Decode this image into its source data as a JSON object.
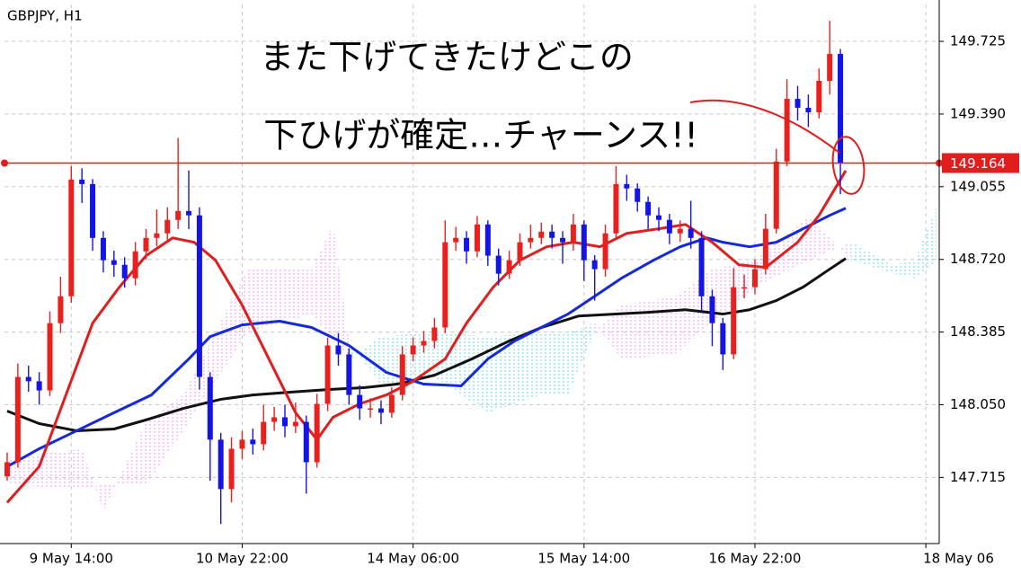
{
  "chart_data": {
    "type": "candlestick",
    "title": "GBPJPY, H1",
    "annotations": [
      "また下げてきたけどこの",
      "下ひげが確定…チャーンス!!"
    ],
    "up_color": "#e8201e",
    "down_color": "#1414e6",
    "x": [
      0,
      2,
      4,
      6,
      8,
      10,
      12,
      14,
      16,
      18,
      20,
      22,
      24,
      26,
      28,
      30,
      32,
      34,
      36,
      38,
      40,
      42,
      44,
      46,
      48,
      50,
      52,
      54,
      56,
      58,
      60,
      62,
      64,
      66,
      68,
      70,
      72,
      74,
      76,
      78,
      80,
      82,
      84,
      86,
      88,
      90,
      92,
      94,
      96,
      98,
      100,
      102,
      104,
      106,
      108,
      110,
      112,
      114,
      116,
      118,
      120,
      122,
      124,
      126,
      128,
      130,
      132,
      134,
      136,
      138,
      140,
      142,
      144,
      146,
      148,
      150,
      152,
      154,
      156
    ],
    "open": [
      147.72,
      147.785,
      148.178,
      148.158,
      148.116,
      148.426,
      148.55,
      149.088,
      149.067,
      148.819,
      148.716,
      148.695,
      148.633,
      148.757,
      148.819,
      148.84,
      148.902,
      148.943,
      148.923,
      148.178,
      147.889,
      147.661,
      147.847,
      147.889,
      147.868,
      147.971,
      147.992,
      147.951,
      147.971,
      147.785,
      148.054,
      148.323,
      148.282,
      148.095,
      148.033,
      148.033,
      148.013,
      148.095,
      148.282,
      148.323,
      148.344,
      148.406,
      148.799,
      148.819,
      148.757,
      148.881,
      148.737,
      148.654,
      148.716,
      148.799,
      148.819,
      148.848,
      148.819,
      148.799,
      148.881,
      148.716,
      148.675,
      148.84,
      149.067,
      149.047,
      148.985,
      148.923,
      148.902,
      148.84,
      148.861,
      148.819,
      148.55,
      148.426,
      148.282,
      148.592,
      148.592,
      148.675,
      148.861,
      149.171,
      149.46,
      149.419,
      149.398,
      149.543,
      149.667
    ],
    "high": [
      147.83,
      148.24,
      148.23,
      148.2,
      148.48,
      148.64,
      149.15,
      149.14,
      149.09,
      148.85,
      148.76,
      148.73,
      148.8,
      148.86,
      148.95,
      148.96,
      149.28,
      149.13,
      148.96,
      148.2,
      147.92,
      147.9,
      147.93,
      147.94,
      148.05,
      148.04,
      148.05,
      148.06,
      148.0,
      148.1,
      148.36,
      148.38,
      148.31,
      148.14,
      148.08,
      148.07,
      148.13,
      148.32,
      148.36,
      148.39,
      148.45,
      148.9,
      148.87,
      148.85,
      148.92,
      148.9,
      148.77,
      148.76,
      148.84,
      148.88,
      148.89,
      148.88,
      148.85,
      148.93,
      148.9,
      148.74,
      148.88,
      149.15,
      149.11,
      149.07,
      149.01,
      148.96,
      148.93,
      148.9,
      148.99,
      148.85,
      148.58,
      148.45,
      148.68,
      148.65,
      148.72,
      148.93,
      149.23,
      149.55,
      149.52,
      149.48,
      149.6,
      149.82,
      149.69
    ],
    "low": [
      147.7,
      147.76,
      148.11,
      148.05,
      148.09,
      148.38,
      148.52,
      148.98,
      148.76,
      148.66,
      148.64,
      148.59,
      148.6,
      148.72,
      148.78,
      148.8,
      148.86,
      148.86,
      148.12,
      147.7,
      147.5,
      147.6,
      147.8,
      147.82,
      147.84,
      147.93,
      147.9,
      147.92,
      147.64,
      147.76,
      148.02,
      148.23,
      148.05,
      147.98,
      147.99,
      147.96,
      147.99,
      148.07,
      148.25,
      148.29,
      148.31,
      148.38,
      148.76,
      148.7,
      148.73,
      148.69,
      148.6,
      148.63,
      148.69,
      148.77,
      148.79,
      148.77,
      148.7,
      148.76,
      148.62,
      148.53,
      148.64,
      148.82,
      148.99,
      148.94,
      148.86,
      148.85,
      148.79,
      148.8,
      148.77,
      148.48,
      148.32,
      148.21,
      148.26,
      148.54,
      148.56,
      148.65,
      148.84,
      149.15,
      149.36,
      149.33,
      149.37,
      149.48,
      149.02
    ],
    "close": [
      147.785,
      148.178,
      148.158,
      148.116,
      148.426,
      148.55,
      149.088,
      149.067,
      148.819,
      148.716,
      148.695,
      148.633,
      148.757,
      148.819,
      148.84,
      148.902,
      148.943,
      148.923,
      148.178,
      147.889,
      147.661,
      147.847,
      147.889,
      147.868,
      147.971,
      147.992,
      147.951,
      147.971,
      147.785,
      148.054,
      148.323,
      148.282,
      148.095,
      148.033,
      148.033,
      148.013,
      148.095,
      148.282,
      148.323,
      148.344,
      148.406,
      148.799,
      148.819,
      148.757,
      148.881,
      148.737,
      148.654,
      148.716,
      148.799,
      148.819,
      148.848,
      148.819,
      148.799,
      148.881,
      148.716,
      148.675,
      148.84,
      149.067,
      149.047,
      148.985,
      148.923,
      148.902,
      148.84,
      148.861,
      148.819,
      148.55,
      148.426,
      148.282,
      148.592,
      148.592,
      148.675,
      148.861,
      149.171,
      149.46,
      149.419,
      149.398,
      149.543,
      149.667,
      149.164
    ],
    "lines": [
      {
        "color": "#111111",
        "x": [
          0,
          6,
          13,
          20,
          26,
          33,
          40,
          46,
          53,
          60,
          67,
          73,
          80,
          87,
          94,
          100,
          107,
          114,
          120,
          127,
          134,
          139,
          144,
          149,
          154,
          157
        ],
        "values": [
          148.021,
          147.963,
          147.93,
          147.938,
          147.98,
          148.033,
          148.075,
          148.095,
          148.108,
          148.12,
          148.129,
          148.145,
          148.186,
          148.261,
          148.344,
          148.406,
          148.459,
          148.468,
          148.476,
          148.488,
          148.468,
          148.488,
          148.53,
          148.592,
          148.675,
          148.724
        ]
      },
      {
        "color": "#1428e0",
        "x": [
          0,
          6,
          13,
          20,
          27,
          34,
          38,
          44,
          51,
          57,
          64,
          71,
          78,
          85,
          90,
          95,
          100,
          105,
          110,
          115,
          121,
          126,
          131,
          134,
          139,
          144,
          149,
          154,
          157
        ],
        "values": [
          147.765,
          147.847,
          147.93,
          148.013,
          148.095,
          148.261,
          148.364,
          148.418,
          148.435,
          148.406,
          148.323,
          148.199,
          148.145,
          148.137,
          148.261,
          148.344,
          148.406,
          148.468,
          148.55,
          148.633,
          148.716,
          148.778,
          148.819,
          148.799,
          148.778,
          148.799,
          148.861,
          148.923,
          148.956
        ]
      },
      {
        "color": "#e01e1e",
        "x": [
          0,
          6,
          11,
          16,
          21,
          26,
          31,
          35,
          39,
          44,
          49,
          54,
          58,
          61,
          66,
          71,
          76,
          82,
          86,
          91,
          96,
          101,
          106,
          111,
          116,
          122,
          127,
          132,
          137,
          142,
          148,
          152,
          157
        ],
        "values": [
          147.599,
          147.765,
          148.095,
          148.426,
          148.592,
          148.737,
          148.819,
          148.799,
          148.716,
          148.509,
          148.261,
          148.013,
          147.889,
          147.992,
          148.054,
          148.095,
          148.158,
          148.261,
          148.426,
          148.592,
          148.716,
          148.778,
          148.799,
          148.778,
          148.84,
          148.861,
          148.881,
          148.799,
          148.695,
          148.683,
          148.799,
          148.923,
          149.129
        ]
      }
    ],
    "cloud": {
      "up_color": "#6fd3e0",
      "down_color": "#f29af0",
      "x": [
        0,
        14,
        18,
        26,
        33,
        45,
        57,
        61,
        64,
        70,
        80,
        90,
        100,
        105,
        110,
        115,
        125,
        132,
        140,
        150,
        158,
        166,
        170,
        174
      ],
      "span_a": [
        147.682,
        147.661,
        147.682,
        147.682,
        147.93,
        148.385,
        148.468,
        148.344,
        148.261,
        148.364,
        148.385,
        148.364,
        148.385,
        148.385,
        148.426,
        148.261,
        148.282,
        148.426,
        148.592,
        148.716,
        148.799,
        148.695,
        148.716,
        148.964
      ],
      "span_b": [
        147.806,
        147.847,
        147.558,
        147.971,
        148.095,
        148.675,
        148.675,
        148.881,
        148.344,
        148.137,
        148.178,
        148.013,
        148.095,
        148.095,
        148.385,
        148.509,
        148.55,
        148.675,
        148.716,
        148.923,
        148.716,
        148.654,
        148.633,
        148.716
      ]
    },
    "current_price": 149.164,
    "price_line_color": "#e01e1e",
    "xlim": [
      -0.5,
      174.5
    ],
    "xticks": [
      {
        "value": 12,
        "label": "9 May 14:00"
      },
      {
        "value": 44,
        "label": "10 May 22:00"
      },
      {
        "value": 76,
        "label": "14 May 06:00"
      },
      {
        "value": 108,
        "label": "15 May 14:00"
      },
      {
        "value": 140,
        "label": "16 May 22:00"
      },
      {
        "value": 172,
        "label": "18 May 06"
      }
    ],
    "ylim": [
      147.41,
      149.895
    ],
    "yticks": [
      149.725,
      {
        "value": 149.39,
        "label": "149.390"
      },
      149.055,
      {
        "value": 148.72,
        "label": "148.720"
      },
      148.385,
      {
        "value": 148.05,
        "label": "148.050"
      },
      147.715
    ],
    "grid": true
  }
}
